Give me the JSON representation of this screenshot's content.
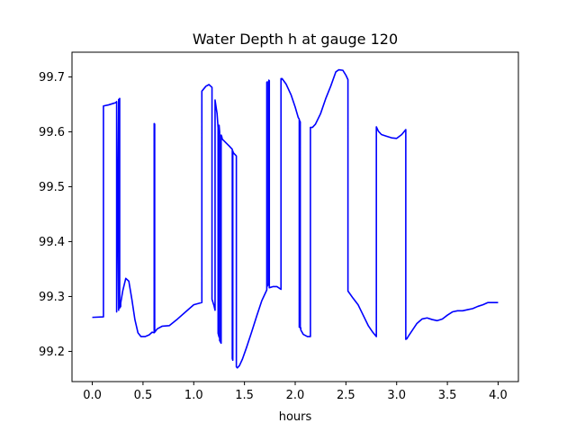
{
  "chart_data": {
    "type": "line",
    "title": "Water Depth h at gauge 120",
    "xlabel": "hours",
    "ylabel": "",
    "xlim": [
      -0.2,
      4.2
    ],
    "ylim": [
      99.145,
      99.745
    ],
    "xticks": [
      0.0,
      0.5,
      1.0,
      1.5,
      2.0,
      2.5,
      3.0,
      3.5,
      4.0
    ],
    "xtick_labels": [
      "0.0",
      "0.5",
      "1.0",
      "1.5",
      "2.0",
      "2.5",
      "3.0",
      "3.5",
      "4.0"
    ],
    "yticks": [
      99.2,
      99.3,
      99.4,
      99.5,
      99.6,
      99.7
    ],
    "ytick_labels": [
      "99.2",
      "99.3",
      "99.4",
      "99.5",
      "99.6",
      "99.7"
    ],
    "grid": false,
    "series": [
      {
        "color": "#0000ff",
        "x": [
          0.0,
          0.11,
          0.11,
          0.16,
          0.23,
          0.24,
          0.24,
          0.26,
          0.26,
          0.27,
          0.27,
          0.28,
          0.28,
          0.3,
          0.33,
          0.36,
          0.39,
          0.42,
          0.45,
          0.48,
          0.52,
          0.56,
          0.59,
          0.61,
          0.61,
          0.615,
          0.615,
          0.64,
          0.69,
          0.76,
          0.84,
          0.92,
          1.0,
          1.08,
          1.08,
          1.12,
          1.15,
          1.18,
          1.18,
          1.2,
          1.21,
          1.21,
          1.23,
          1.24,
          1.24,
          1.25,
          1.25,
          1.255,
          1.255,
          1.27,
          1.27,
          1.275,
          1.275,
          1.28,
          1.28,
          1.35,
          1.38,
          1.38,
          1.385,
          1.385,
          1.39,
          1.42,
          1.42,
          1.43,
          1.43,
          1.45,
          1.48,
          1.52,
          1.57,
          1.62,
          1.67,
          1.72,
          1.72,
          1.725,
          1.725,
          1.74,
          1.74,
          1.745,
          1.745,
          1.78,
          1.82,
          1.86,
          1.86,
          1.87,
          1.87,
          1.91,
          1.96,
          2.0,
          2.03,
          2.04,
          2.04,
          2.045,
          2.045,
          2.05,
          2.05,
          2.055,
          2.055,
          2.08,
          2.12,
          2.15,
          2.15,
          2.17,
          2.2,
          2.25,
          2.3,
          2.35,
          2.4,
          2.43,
          2.47,
          2.5,
          2.52,
          2.52,
          2.57,
          2.62,
          2.67,
          2.72,
          2.76,
          2.8,
          2.8,
          2.82,
          2.85,
          2.9,
          2.95,
          3.0,
          3.05,
          3.09,
          3.09,
          3.1,
          3.12,
          3.16,
          3.2,
          3.25,
          3.3,
          3.35,
          3.4,
          3.45,
          3.5,
          3.55,
          3.6,
          3.65,
          3.7,
          3.75,
          3.8,
          3.85,
          3.9,
          3.95,
          4.0
        ],
        "y": [
          99.262,
          99.263,
          99.647,
          99.649,
          99.653,
          99.655,
          99.272,
          99.659,
          99.275,
          99.661,
          99.279,
          99.282,
          99.288,
          99.31,
          99.333,
          99.328,
          99.295,
          99.258,
          99.234,
          99.227,
          99.227,
          99.23,
          99.235,
          99.234,
          99.615,
          99.614,
          99.235,
          99.241,
          99.246,
          99.247,
          99.259,
          99.272,
          99.285,
          99.289,
          99.674,
          99.683,
          99.686,
          99.681,
          99.295,
          99.283,
          99.275,
          99.658,
          99.633,
          99.607,
          99.233,
          99.226,
          99.612,
          99.6,
          99.22,
          99.215,
          99.594,
          99.592,
          99.592,
          99.588,
          99.587,
          99.574,
          99.568,
          99.187,
          99.184,
          99.565,
          99.562,
          99.556,
          99.172,
          99.17,
          99.17,
          99.174,
          99.186,
          99.207,
          99.235,
          99.264,
          99.292,
          99.312,
          99.69,
          99.691,
          99.319,
          99.323,
          99.694,
          99.693,
          99.316,
          99.318,
          99.318,
          99.313,
          99.697,
          99.696,
          99.697,
          99.687,
          99.667,
          99.645,
          99.626,
          99.623,
          99.244,
          99.244,
          99.62,
          99.618,
          99.243,
          99.243,
          99.239,
          99.231,
          99.227,
          99.227,
          99.608,
          99.608,
          99.614,
          99.633,
          99.66,
          99.683,
          99.709,
          99.713,
          99.712,
          99.703,
          99.695,
          99.31,
          99.297,
          99.285,
          99.266,
          99.247,
          99.236,
          99.227,
          99.609,
          99.601,
          99.595,
          99.592,
          99.589,
          99.588,
          99.595,
          99.604,
          99.222,
          99.223,
          99.229,
          99.24,
          99.251,
          99.259,
          99.261,
          99.258,
          99.256,
          99.259,
          99.266,
          99.272,
          99.274,
          99.274,
          99.276,
          99.278,
          99.282,
          99.285,
          99.289,
          99.289,
          99.289
        ]
      }
    ]
  }
}
